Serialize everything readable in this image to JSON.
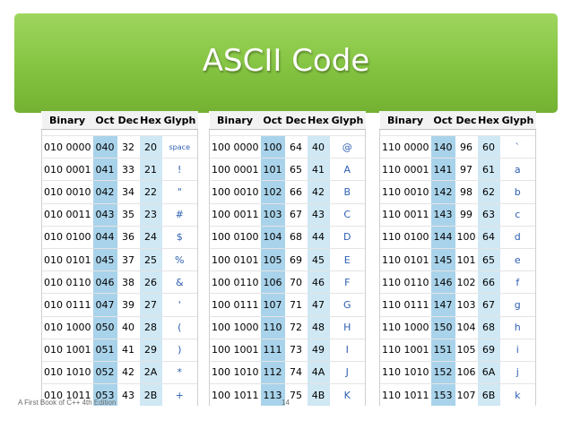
{
  "slide": {
    "title": "ASCII Code",
    "footer_left": "A First Book of C++ 4th Edition",
    "page_number": "14"
  },
  "headers": [
    "Binary",
    "Oct",
    "Dec",
    "Hex",
    "Glyph"
  ],
  "tables": [
    {
      "rows": [
        [
          "010 0000",
          "040",
          "32",
          "20",
          "space"
        ],
        [
          "010 0001",
          "041",
          "33",
          "21",
          "!"
        ],
        [
          "010 0010",
          "042",
          "34",
          "22",
          "\""
        ],
        [
          "010 0011",
          "043",
          "35",
          "23",
          "#"
        ],
        [
          "010 0100",
          "044",
          "36",
          "24",
          "$"
        ],
        [
          "010 0101",
          "045",
          "37",
          "25",
          "%"
        ],
        [
          "010 0110",
          "046",
          "38",
          "26",
          "&"
        ],
        [
          "010 0111",
          "047",
          "39",
          "27",
          "'"
        ],
        [
          "010 1000",
          "050",
          "40",
          "28",
          "("
        ],
        [
          "010 1001",
          "051",
          "41",
          "29",
          ")"
        ],
        [
          "010 1010",
          "052",
          "42",
          "2A",
          "*"
        ],
        [
          "010 1011",
          "053",
          "43",
          "2B",
          "+"
        ]
      ]
    },
    {
      "rows": [
        [
          "100 0000",
          "100",
          "64",
          "40",
          "@"
        ],
        [
          "100 0001",
          "101",
          "65",
          "41",
          "A"
        ],
        [
          "100 0010",
          "102",
          "66",
          "42",
          "B"
        ],
        [
          "100 0011",
          "103",
          "67",
          "43",
          "C"
        ],
        [
          "100 0100",
          "104",
          "68",
          "44",
          "D"
        ],
        [
          "100 0101",
          "105",
          "69",
          "45",
          "E"
        ],
        [
          "100 0110",
          "106",
          "70",
          "46",
          "F"
        ],
        [
          "100 0111",
          "107",
          "71",
          "47",
          "G"
        ],
        [
          "100 1000",
          "110",
          "72",
          "48",
          "H"
        ],
        [
          "100 1001",
          "111",
          "73",
          "49",
          "I"
        ],
        [
          "100 1010",
          "112",
          "74",
          "4A",
          "J"
        ],
        [
          "100 1011",
          "113",
          "75",
          "4B",
          "K"
        ]
      ]
    },
    {
      "rows": [
        [
          "110 0000",
          "140",
          "96",
          "60",
          "`"
        ],
        [
          "110 0001",
          "141",
          "97",
          "61",
          "a"
        ],
        [
          "110 0010",
          "142",
          "98",
          "62",
          "b"
        ],
        [
          "110 0011",
          "143",
          "99",
          "63",
          "c"
        ],
        [
          "110 0100",
          "144",
          "100",
          "64",
          "d"
        ],
        [
          "110 0101",
          "145",
          "101",
          "65",
          "e"
        ],
        [
          "110 0110",
          "146",
          "102",
          "66",
          "f"
        ],
        [
          "110 0111",
          "147",
          "103",
          "67",
          "g"
        ],
        [
          "110 1000",
          "150",
          "104",
          "68",
          "h"
        ],
        [
          "110 1001",
          "151",
          "105",
          "69",
          "i"
        ],
        [
          "110 1010",
          "152",
          "106",
          "6A",
          "j"
        ],
        [
          "110 1011",
          "153",
          "107",
          "6B",
          "k"
        ]
      ]
    }
  ],
  "colors": {
    "header_green": "#84c341",
    "oct_column": "#a9d3ea",
    "hex_column": "#cfe8f4",
    "glyph_text": "#2d5fb0"
  }
}
